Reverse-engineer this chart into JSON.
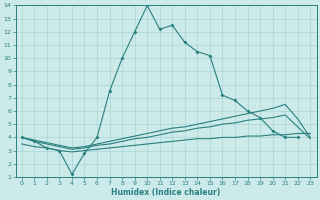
{
  "xlabel": "Humidex (Indice chaleur)",
  "background_color": "#cceaea",
  "grid_color": "#aad4d4",
  "line_color": "#2a7f7f",
  "xlim": [
    -0.5,
    23.5
  ],
  "ylim": [
    1,
    14
  ],
  "xticks": [
    0,
    1,
    2,
    3,
    4,
    5,
    6,
    7,
    8,
    9,
    10,
    11,
    12,
    13,
    14,
    15,
    16,
    17,
    18,
    19,
    20,
    21,
    22,
    23
  ],
  "yticks": [
    1,
    2,
    3,
    4,
    5,
    6,
    7,
    8,
    9,
    10,
    11,
    12,
    13,
    14
  ],
  "series": [
    {
      "x": [
        0,
        1,
        2,
        3,
        4,
        5,
        6,
        7,
        8,
        9,
        10,
        11,
        12,
        13,
        14,
        15,
        16,
        17,
        18,
        19,
        20,
        21,
        22,
        23
      ],
      "y": [
        4,
        3.7,
        3.2,
        3.0,
        1.2,
        2.8,
        4.0,
        7.5,
        10.0,
        12.0,
        14.0,
        12.2,
        12.5,
        11.2,
        10.5,
        10.2,
        7.2,
        6.8,
        6.0,
        5.5,
        4.5,
        4.0,
        4.0,
        null
      ],
      "has_markers": true
    },
    {
      "x": [
        0,
        1,
        2,
        3,
        4,
        5,
        6,
        7,
        8,
        9,
        10,
        11,
        12,
        13,
        14,
        15,
        16,
        17,
        18,
        19,
        20,
        21,
        22,
        23
      ],
      "y": [
        4.0,
        3.8,
        3.6,
        3.4,
        3.2,
        3.3,
        3.5,
        3.7,
        3.9,
        4.1,
        4.3,
        4.5,
        4.7,
        4.8,
        5.0,
        5.2,
        5.4,
        5.6,
        5.8,
        6.0,
        6.2,
        6.5,
        5.4,
        4.0
      ],
      "has_markers": false
    },
    {
      "x": [
        0,
        1,
        2,
        3,
        4,
        5,
        6,
        7,
        8,
        9,
        10,
        11,
        12,
        13,
        14,
        15,
        16,
        17,
        18,
        19,
        20,
        21,
        22,
        23
      ],
      "y": [
        4.0,
        3.7,
        3.5,
        3.3,
        3.1,
        3.2,
        3.4,
        3.5,
        3.7,
        3.9,
        4.0,
        4.2,
        4.4,
        4.5,
        4.7,
        4.8,
        5.0,
        5.1,
        5.3,
        5.4,
        5.5,
        5.7,
        4.8,
        3.9
      ],
      "has_markers": false
    },
    {
      "x": [
        0,
        1,
        2,
        3,
        4,
        5,
        6,
        7,
        8,
        9,
        10,
        11,
        12,
        13,
        14,
        15,
        16,
        17,
        18,
        19,
        20,
        21,
        22,
        23
      ],
      "y": [
        3.5,
        3.3,
        3.2,
        3.0,
        2.9,
        3.0,
        3.1,
        3.2,
        3.3,
        3.4,
        3.5,
        3.6,
        3.7,
        3.8,
        3.9,
        3.9,
        4.0,
        4.0,
        4.1,
        4.1,
        4.2,
        4.2,
        4.3,
        4.3
      ],
      "has_markers": false
    }
  ]
}
